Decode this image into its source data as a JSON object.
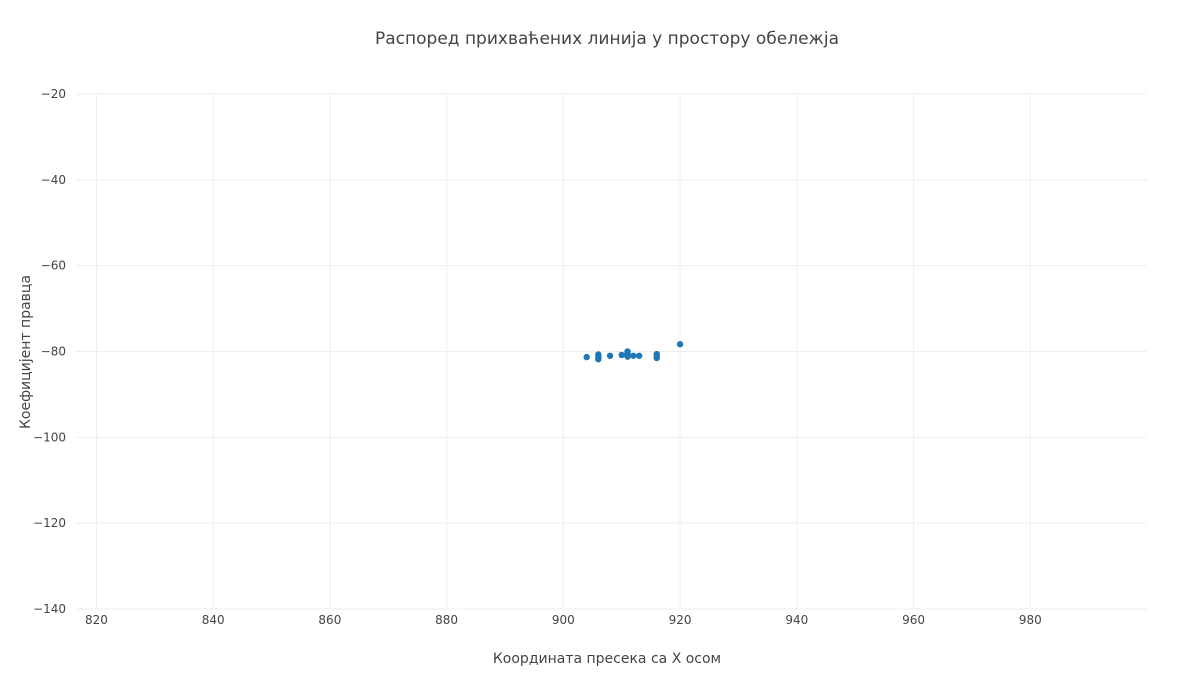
{
  "chart_data": {
    "type": "scatter",
    "title": "Распоред прихваћених линија у простору обележја",
    "xlabel": "Координата пресека са X осом",
    "ylabel": "Коефицијент правца",
    "xlim": [
      816.5,
      1000
    ],
    "ylim": [
      -140,
      -20
    ],
    "x_ticks": [
      820,
      840,
      860,
      880,
      900,
      920,
      940,
      960,
      980
    ],
    "y_ticks": [
      -20,
      -40,
      -60,
      -80,
      -100,
      -120,
      -140
    ],
    "x_tick_labels": [
      "820",
      "840",
      "860",
      "880",
      "900",
      "920",
      "940",
      "960",
      "980"
    ],
    "y_tick_labels": [
      "−20",
      "−40",
      "−60",
      "−80",
      "−100",
      "−120",
      "−140"
    ],
    "grid": true,
    "marker_color": "#1f77b4",
    "series": [
      {
        "x": [
          904,
          906,
          906,
          906,
          908,
          910,
          911,
          911,
          911,
          912,
          913,
          916,
          916,
          916,
          920
        ],
        "y": [
          -81.3,
          -80.7,
          -81.3,
          -81.8,
          -81.0,
          -80.8,
          -80.0,
          -80.6,
          -81.2,
          -81.0,
          -81.0,
          -80.6,
          -81.2,
          -81.5,
          -78.3
        ]
      }
    ]
  }
}
